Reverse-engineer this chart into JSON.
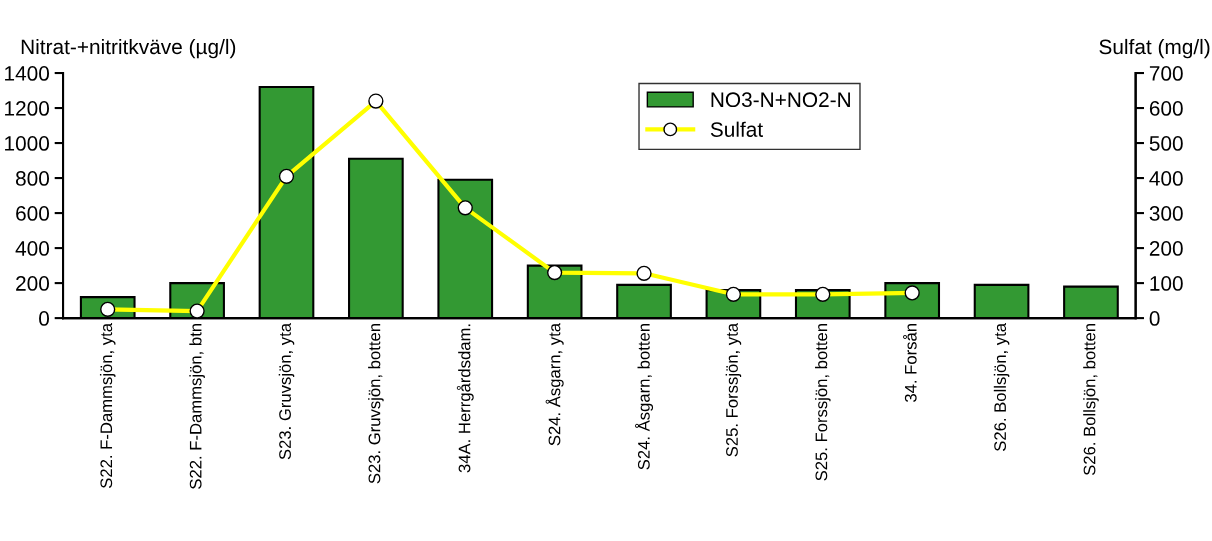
{
  "chart_data": {
    "type": "bar",
    "ylabel": "Nitrat-+nitritkväve (µg/l)",
    "y2label": "Sulfat (mg/l)",
    "categories": [
      "S22. F-Dammsjön, yta",
      "S22. F-Dammsjön, btn",
      "S23. Gruvsjön, yta",
      "S23. Gruvsjön, botten",
      "34A. Herrgårdsdam.",
      "S24. Åsgarn, yta",
      "S24. Åsgarn, botten",
      "S25. Forssjön, yta",
      "S25. Forssjön, botten",
      "34. Forsån",
      "S26. Bollsjön, yta",
      "S26. Bollsjön, botten"
    ],
    "series": [
      {
        "name": "NO3-N+NO2-N",
        "color": "#339933",
        "values": [
          120,
          200,
          1320,
          910,
          790,
          300,
          190,
          160,
          160,
          200,
          190,
          180
        ]
      },
      {
        "name": "Sulfat",
        "type": "line",
        "axis": "y2",
        "color": "#ffff00",
        "marker": "circle",
        "values": [
          25,
          20,
          405,
          620,
          315,
          130,
          128,
          68,
          68,
          72,
          null,
          null
        ]
      }
    ],
    "ylim": [
      0,
      1400
    ],
    "yticks": [
      0,
      200,
      400,
      600,
      800,
      1000,
      1200,
      1400
    ],
    "y2lim": [
      0,
      700
    ],
    "y2ticks": [
      0,
      100,
      200,
      300,
      400,
      500,
      600,
      700
    ],
    "grid": false,
    "legend": "top"
  }
}
